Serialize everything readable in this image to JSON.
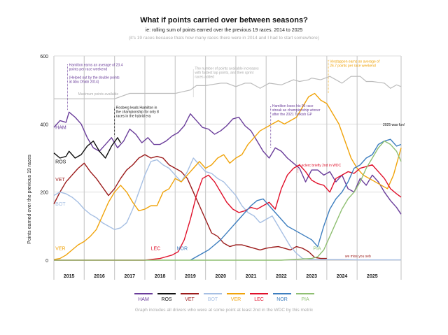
{
  "chart_data": {
    "type": "line",
    "title": "What if points carried over between seasons?",
    "subtitle": "ie: rolling sum of points earned over the previous 19 races. 2014 to 2025",
    "note": "(it's 19 races because thats how many races there were in 2014 and I had to start somewhere)",
    "ylabel": "Points earned over the previous 19 races",
    "xlabel": "",
    "ylim": [
      0,
      600
    ],
    "xlim": [
      2014.5,
      2025.95
    ],
    "yticks": [
      0,
      200,
      400,
      600
    ],
    "grid": true,
    "x_tick_labels": [
      {
        "label": "2015",
        "x": 2015.0
      },
      {
        "label": "2016",
        "x": 2016.0
      },
      {
        "label": "2017",
        "x": 2017.0
      },
      {
        "label": "2018",
        "x": 2018.0
      },
      {
        "label": "2019",
        "x": 2019.0
      },
      {
        "label": "2020",
        "x": 2020.0
      },
      {
        "label": "2021",
        "x": 2021.0
      },
      {
        "label": "2022",
        "x": 2022.0
      },
      {
        "label": "2023",
        "x": 2023.0
      },
      {
        "label": "2024",
        "x": 2024.0
      },
      {
        "label": "2025",
        "x": 2025.0
      }
    ],
    "year_boundaries": [
      2015.5,
      2016.5,
      2017.5,
      2018.5,
      2019.5,
      2020.5,
      2021.5,
      2022.5,
      2023.5,
      2024.5
    ],
    "legend_position": "bottom",
    "footer": "Graph includes all drivers who were at some point at least 2nd in the WDC by this metric",
    "max_points": {
      "label": "Maximum points available",
      "x": [
        2014.5,
        2016.5,
        2017.0,
        2018.5,
        2019.0,
        2019.2,
        2019.5,
        2020.0,
        2020.2,
        2020.5,
        2020.8,
        2021.0,
        2021.3,
        2021.6,
        2022.0,
        2022.4,
        2022.6,
        2022.9,
        2023.0,
        2023.3,
        2023.6,
        2024.0,
        2024.3,
        2024.6,
        2024.8,
        2025.0,
        2025.4,
        2025.6,
        2025.8,
        2025.95
      ],
      "y": [
        474,
        474,
        490,
        490,
        500,
        513,
        513,
        520,
        520,
        510,
        520,
        520,
        505,
        520,
        515,
        530,
        525,
        530,
        535,
        530,
        540,
        520,
        540,
        540,
        525,
        525,
        520,
        505,
        515,
        510
      ]
    },
    "series": [
      {
        "name": "HAM",
        "color": "#6a3d9a",
        "x": [
          2014.5,
          2014.7,
          2014.9,
          2015.0,
          2015.2,
          2015.4,
          2015.6,
          2015.8,
          2016.0,
          2016.2,
          2016.4,
          2016.6,
          2016.8,
          2017.0,
          2017.2,
          2017.4,
          2017.6,
          2017.8,
          2018.0,
          2018.2,
          2018.4,
          2018.6,
          2018.8,
          2019.0,
          2019.2,
          2019.4,
          2019.6,
          2019.8,
          2020.0,
          2020.2,
          2020.4,
          2020.6,
          2020.8,
          2021.0,
          2021.2,
          2021.4,
          2021.6,
          2021.8,
          2022.0,
          2022.2,
          2022.4,
          2022.6,
          2022.8,
          2023.0,
          2023.2,
          2023.4,
          2023.6,
          2023.8,
          2024.0,
          2024.2,
          2024.4,
          2024.6,
          2024.8,
          2025.0,
          2025.2,
          2025.4,
          2025.6,
          2025.8,
          2025.95
        ],
        "y": [
          390,
          410,
          405,
          435,
          420,
          400,
          360,
          330,
          320,
          340,
          360,
          330,
          350,
          385,
          370,
          345,
          360,
          340,
          340,
          350,
          365,
          375,
          395,
          430,
          410,
          390,
          385,
          370,
          380,
          395,
          415,
          420,
          395,
          380,
          350,
          320,
          300,
          330,
          320,
          300,
          285,
          270,
          230,
          265,
          265,
          250,
          260,
          230,
          250,
          210,
          200,
          240,
          220,
          250,
          230,
          200,
          175,
          155,
          135
        ]
      },
      {
        "name": "ROS",
        "color": "#111111",
        "x": [
          2014.5,
          2014.7,
          2014.9,
          2015.0,
          2015.2,
          2015.4,
          2015.6,
          2015.8,
          2016.0,
          2016.2,
          2016.4,
          2016.6,
          2016.7
        ],
        "y": [
          315,
          300,
          305,
          320,
          300,
          310,
          335,
          350,
          320,
          300,
          335,
          360,
          345
        ]
      },
      {
        "name": "VET",
        "color": "#9b1b1b",
        "x": [
          2014.5,
          2014.7,
          2014.9,
          2015.1,
          2015.3,
          2015.5,
          2015.7,
          2015.9,
          2016.1,
          2016.3,
          2016.5,
          2016.7,
          2016.9,
          2017.1,
          2017.3,
          2017.5,
          2017.7,
          2017.9,
          2018.1,
          2018.3,
          2018.5,
          2018.7,
          2018.9,
          2019.1,
          2019.3,
          2019.5,
          2019.7,
          2019.9,
          2020.1,
          2020.3,
          2020.5,
          2020.7,
          2020.9,
          2021.1,
          2021.3,
          2021.5,
          2021.7,
          2021.9,
          2022.1,
          2022.3,
          2022.5,
          2022.7,
          2022.9,
          2023.1,
          2023.3,
          2023.5
        ],
        "y": [
          165,
          200,
          230,
          250,
          270,
          285,
          260,
          240,
          215,
          190,
          210,
          240,
          265,
          280,
          300,
          310,
          300,
          305,
          300,
          280,
          270,
          260,
          240,
          200,
          160,
          120,
          80,
          70,
          50,
          40,
          45,
          45,
          40,
          35,
          30,
          35,
          38,
          40,
          35,
          30,
          40,
          35,
          25,
          8,
          5,
          5
        ]
      },
      {
        "name": "BOT",
        "color": "#a6bfe3",
        "x": [
          2014.5,
          2014.7,
          2014.9,
          2015.1,
          2015.3,
          2015.5,
          2015.7,
          2015.9,
          2016.1,
          2016.3,
          2016.5,
          2016.7,
          2016.9,
          2017.1,
          2017.3,
          2017.5,
          2017.7,
          2017.9,
          2018.1,
          2018.3,
          2018.5,
          2018.7,
          2018.9,
          2019.1,
          2019.3,
          2019.5,
          2019.7,
          2019.9,
          2020.1,
          2020.3,
          2020.5,
          2020.7,
          2020.9,
          2021.1,
          2021.3,
          2021.5,
          2021.7,
          2021.9,
          2022.1,
          2022.3,
          2022.5,
          2022.7,
          2022.9,
          2023.1,
          2023.3,
          2023.5,
          2024.0,
          2024.5,
          2025.0,
          2025.5,
          2025.95
        ],
        "y": [
          190,
          200,
          195,
          185,
          170,
          150,
          135,
          125,
          110,
          100,
          90,
          95,
          110,
          150,
          200,
          250,
          290,
          295,
          280,
          270,
          250,
          230,
          260,
          300,
          280,
          260,
          255,
          240,
          230,
          210,
          190,
          160,
          140,
          130,
          110,
          120,
          130,
          100,
          70,
          40,
          20,
          5,
          3,
          2,
          2,
          2,
          2,
          1,
          1,
          1,
          1
        ]
      },
      {
        "name": "VER",
        "color": "#f0a30a",
        "x": [
          2014.5,
          2014.7,
          2014.9,
          2015.1,
          2015.3,
          2015.5,
          2015.7,
          2015.9,
          2016.1,
          2016.3,
          2016.5,
          2016.7,
          2016.9,
          2017.1,
          2017.3,
          2017.5,
          2017.7,
          2017.9,
          2018.1,
          2018.3,
          2018.5,
          2018.7,
          2018.9,
          2019.1,
          2019.3,
          2019.5,
          2019.7,
          2019.9,
          2020.1,
          2020.3,
          2020.5,
          2020.7,
          2020.9,
          2021.1,
          2021.3,
          2021.5,
          2021.7,
          2021.9,
          2022.1,
          2022.3,
          2022.5,
          2022.7,
          2022.9,
          2023.1,
          2023.3,
          2023.5,
          2023.7,
          2023.9,
          2024.1,
          2024.3,
          2024.5,
          2024.7,
          2024.9,
          2025.1,
          2025.3,
          2025.5,
          2025.7,
          2025.95
        ],
        "y": [
          2,
          5,
          15,
          30,
          45,
          55,
          70,
          90,
          130,
          170,
          200,
          220,
          200,
          170,
          145,
          150,
          160,
          160,
          200,
          210,
          240,
          230,
          250,
          270,
          290,
          270,
          280,
          300,
          310,
          285,
          300,
          310,
          340,
          360,
          380,
          390,
          400,
          410,
          400,
          410,
          420,
          450,
          480,
          490,
          470,
          460,
          430,
          400,
          350,
          300,
          270,
          250,
          240,
          230,
          220,
          210,
          250,
          330
        ]
      },
      {
        "name": "LEC",
        "color": "#e0102a",
        "x": [
          2014.5,
          2015.5,
          2016.5,
          2017.5,
          2018.0,
          2018.2,
          2018.4,
          2018.6,
          2018.8,
          2019.0,
          2019.2,
          2019.4,
          2019.6,
          2019.8,
          2020.0,
          2020.2,
          2020.4,
          2020.6,
          2020.8,
          2021.0,
          2021.2,
          2021.4,
          2021.6,
          2021.8,
          2022.0,
          2022.2,
          2022.4,
          2022.6,
          2022.8,
          2023.0,
          2023.2,
          2023.4,
          2023.6,
          2023.8,
          2024.0,
          2024.2,
          2024.4,
          2024.6,
          2024.8,
          2025.0,
          2025.2,
          2025.4,
          2025.6,
          2025.8,
          2025.95
        ],
        "y": [
          0,
          0,
          0,
          0,
          5,
          10,
          15,
          25,
          60,
          120,
          190,
          240,
          250,
          230,
          200,
          170,
          150,
          140,
          145,
          155,
          150,
          160,
          170,
          150,
          210,
          250,
          270,
          280,
          260,
          235,
          225,
          220,
          200,
          240,
          250,
          260,
          255,
          270,
          275,
          280,
          260,
          240,
          210,
          195,
          185
        ]
      },
      {
        "name": "NOR",
        "color": "#3d7ebf",
        "x": [
          2019.0,
          2019.2,
          2019.4,
          2019.6,
          2019.8,
          2020.0,
          2020.2,
          2020.4,
          2020.6,
          2020.8,
          2021.0,
          2021.2,
          2021.4,
          2021.6,
          2021.8,
          2022.0,
          2022.2,
          2022.4,
          2022.6,
          2022.8,
          2023.0,
          2023.2,
          2023.4,
          2023.6,
          2023.8,
          2024.0,
          2024.2,
          2024.4,
          2024.6,
          2024.8,
          2025.0,
          2025.2,
          2025.4,
          2025.6,
          2025.8,
          2025.95
        ],
        "y": [
          0,
          10,
          20,
          30,
          45,
          60,
          80,
          100,
          120,
          140,
          160,
          175,
          180,
          160,
          140,
          120,
          100,
          90,
          80,
          70,
          60,
          40,
          100,
          150,
          180,
          200,
          230,
          270,
          280,
          300,
          310,
          340,
          350,
          355,
          335,
          340
        ]
      },
      {
        "name": "PIA",
        "color": "#8fbf72",
        "x": [
          2014.5,
          2018.0,
          2019.0,
          2020.0,
          2021.0,
          2022.0,
          2023.0,
          2023.2,
          2023.4,
          2023.6,
          2023.8,
          2024.0,
          2024.2,
          2024.4,
          2024.6,
          2024.8,
          2025.0,
          2025.2,
          2025.4,
          2025.6,
          2025.8,
          2025.95
        ],
        "y": [
          0,
          0,
          0,
          0,
          0,
          0,
          5,
          10,
          30,
          70,
          110,
          150,
          180,
          200,
          230,
          270,
          300,
          330,
          350,
          340,
          320,
          290
        ]
      }
    ],
    "series_labels": [
      {
        "name": "HAM",
        "text": "HAM",
        "x": 2014.55,
        "y": 385
      },
      {
        "name": "ROS",
        "text": "ROS",
        "x": 2014.55,
        "y": 285
      },
      {
        "name": "VET",
        "text": "VET",
        "x": 2014.55,
        "y": 232
      },
      {
        "name": "BOT",
        "text": "BOT",
        "x": 2014.55,
        "y": 160
      },
      {
        "name": "VER",
        "text": "VER",
        "x": 2014.55,
        "y": 30
      },
      {
        "name": "LEC",
        "text": "LEC",
        "x": 2017.7,
        "y": 30
      },
      {
        "name": "NOR",
        "text": "NOR",
        "x": 2018.55,
        "y": 30
      },
      {
        "name": "PIA",
        "text": "PIA",
        "x": 2023.05,
        "y": 30
      }
    ],
    "annotations": [
      {
        "id": "ham-2014",
        "color": "#6a3d9a",
        "lines": [
          "Hamilton earns an average of 23.4",
          "points per race weekend",
          "",
          "(Helped out by the double points",
          "at Abu Dhabi 2014)"
        ],
        "x": 2015.0,
        "y": 570,
        "lx": 2014.95,
        "ly_top": 575,
        "ly_bottom": 440
      },
      {
        "id": "ros-leads",
        "color": "#111111",
        "lines": [
          "Rosberg leads Hamilton in",
          "the championship for only 8",
          "races in the hybrid era"
        ],
        "x": 2016.55,
        "y": 445,
        "lx": 2016.5,
        "ly_top": 448,
        "ly_bottom": 365
      },
      {
        "id": "points-available",
        "color": "#aaaaaa",
        "lines": [
          "The number of points available increases",
          "with fastest lap points, and then sprint",
          "races added"
        ],
        "x": 2019.15,
        "y": 560,
        "lx": 2019.1,
        "ly_top": 560,
        "ly_bottom": 478
      },
      {
        "id": "ham-streak",
        "color": "#6a3d9a",
        "lines": [
          "Hamilton loses his 95 race",
          "streak as championship winner",
          "after the 2021 Turkish GP"
        ],
        "x": 2021.7,
        "y": 450,
        "lx": 2021.65,
        "ly_top": 452,
        "ly_bottom": 330
      },
      {
        "id": "ver-avg",
        "color": "#f0a30a",
        "lines": [
          "Verstappen earns an average of",
          "26.7 points per race weekend"
        ],
        "x": 2023.6,
        "y": 580,
        "lx": 2023.55,
        "ly_top": 588,
        "ly_bottom": 490
      },
      {
        "id": "lec-2nd",
        "color": "#e0102a",
        "lines": [
          "Leclerc briefly 2nd in WDC"
        ],
        "x": 2022.6,
        "y": 275,
        "lx": 2022.55,
        "ly_top": 280,
        "ly_bottom": 258
      },
      {
        "id": "fun-2025",
        "color": "#111111",
        "lines": [
          "2025 was fun!"
        ],
        "x": 2025.35,
        "y": 395,
        "lx": null
      },
      {
        "id": "miss-seb",
        "color": "#9b1b1b",
        "lines": [
          "we miss you seb"
        ],
        "x": 2024.1,
        "y": 8,
        "lx": null
      }
    ]
  }
}
